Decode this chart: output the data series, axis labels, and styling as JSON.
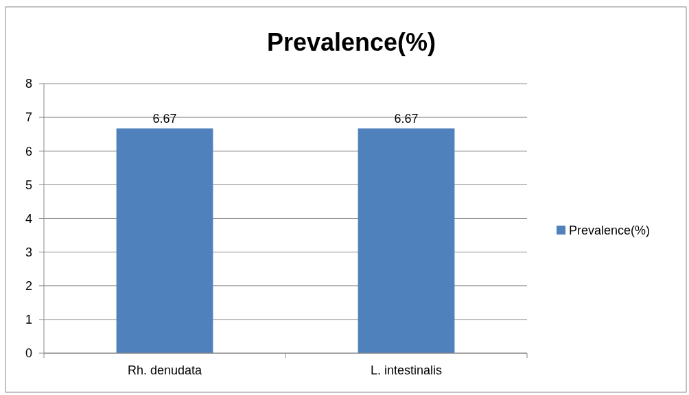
{
  "chart_data": {
    "type": "bar",
    "title": "Prevalence(%)",
    "categories": [
      "Rh. denudata",
      "L. intestinalis"
    ],
    "series": [
      {
        "name": "Prevalence(%)",
        "color": "#4f81bd",
        "values": [
          6.67,
          6.67
        ]
      }
    ],
    "ylim": [
      0,
      8
    ],
    "yticks": [
      0,
      1,
      2,
      3,
      4,
      5,
      6,
      7,
      8
    ],
    "grid": "y",
    "legend": "right",
    "data_labels": true
  }
}
